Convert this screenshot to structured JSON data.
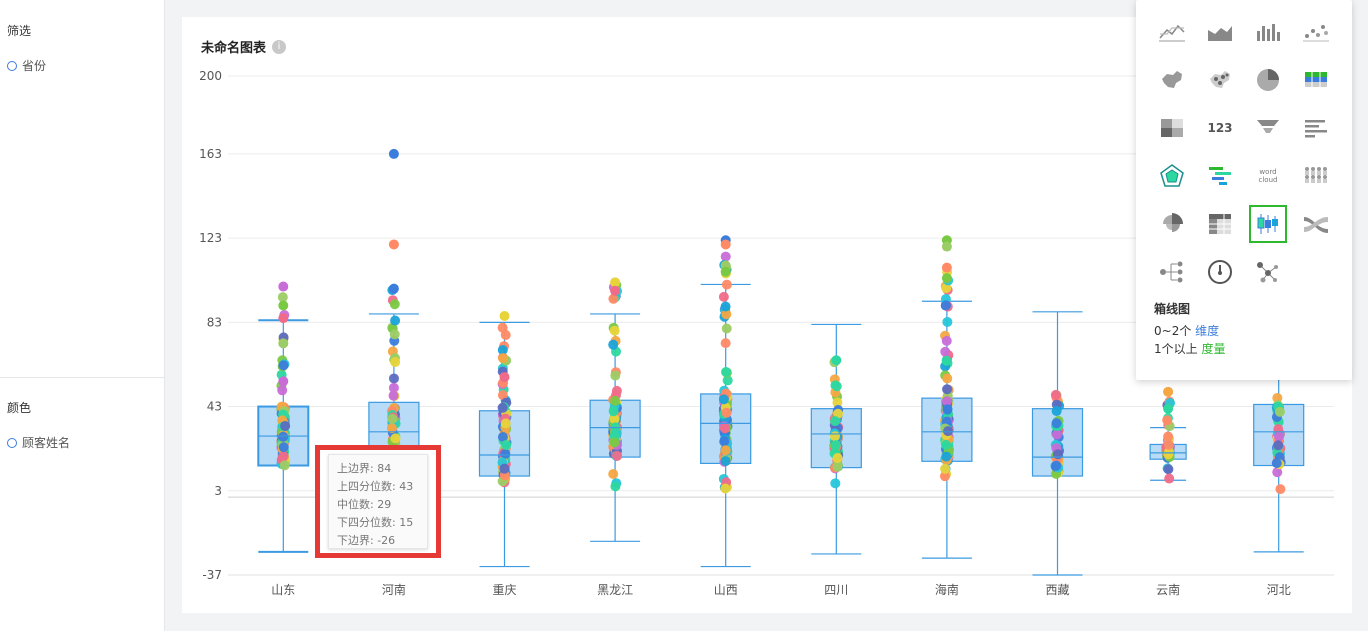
{
  "left_panel": {
    "filter_title": "筛选",
    "filter_field": "省份",
    "color_title": "颜色",
    "color_field": "顾客姓名"
  },
  "chart_title": "未命名图表",
  "tooltip": {
    "lines": [
      "上边界: 84",
      "上四分位数: 43",
      "中位数: 29",
      "下四分位数: 15",
      "下边界: -26"
    ]
  },
  "chart_picker": {
    "icons": [
      "line-chart-icon",
      "area-chart-icon",
      "bar-chart-icon",
      "scatter-chart-icon",
      "china-map-icon",
      "dot-map-icon",
      "pie-chart-icon",
      "flag-table-icon",
      "heatmap-icon",
      "kpi-number-icon",
      "funnel-icon",
      "horizontal-bar-icon",
      "radar-icon",
      "gantt-icon",
      "word-cloud-icon",
      "people-icon",
      "rose-pie-icon",
      "pivot-table-icon",
      "boxplot-icon",
      "sankey-icon",
      "tree-icon",
      "gauge-icon",
      "network-icon"
    ],
    "kpi_text": "123",
    "wordcloud_text": "word cloud",
    "selected": "boxplot-icon",
    "name": "箱线图",
    "dim_prefix": "0~2个 ",
    "dim_word": "维度",
    "measure_prefix": "1个以上 ",
    "measure_word": "度量"
  },
  "chart_data": {
    "type": "boxplot",
    "y_ticks": [
      -37,
      3,
      43,
      83,
      123,
      163,
      200
    ],
    "ylim": [
      -37,
      200
    ],
    "categories": [
      "山东",
      "河南",
      "重庆",
      "黑龙江",
      "山西",
      "四川",
      "海南",
      "西藏",
      "云南",
      "河北"
    ],
    "boxes": [
      {
        "whisker_low": -26,
        "q1": 15,
        "median": 29,
        "q3": 43,
        "whisker_high": 84
      },
      {
        "whisker_low": -26,
        "q1": 15,
        "median": 31,
        "q3": 45,
        "whisker_high": 87
      },
      {
        "whisker_low": -33,
        "q1": 10,
        "median": 20,
        "q3": 41,
        "whisker_high": 83
      },
      {
        "whisker_low": -21,
        "q1": 19,
        "median": 33,
        "q3": 46,
        "whisker_high": 87
      },
      {
        "whisker_low": -33,
        "q1": 16,
        "median": 35,
        "q3": 49,
        "whisker_high": 101
      },
      {
        "whisker_low": -27,
        "q1": 14,
        "median": 30,
        "q3": 42,
        "whisker_high": 82
      },
      {
        "whisker_low": -29,
        "q1": 17,
        "median": 31,
        "q3": 47,
        "whisker_high": 93
      },
      {
        "whisker_low": -37,
        "q1": 10,
        "median": 19,
        "q3": 42,
        "whisker_high": 88
      },
      {
        "whisker_low": 8,
        "q1": 18,
        "median": 21,
        "q3": 25,
        "whisker_high": 33
      },
      {
        "whisker_low": -26,
        "q1": 15,
        "median": 31,
        "q3": 44,
        "whisker_high": 88
      }
    ],
    "outliers": [
      [
        100,
        91,
        85,
        73,
        55
      ],
      [
        163,
        120,
        99
      ],
      [
        86,
        57
      ],
      [
        102,
        98
      ],
      [
        122,
        120,
        110,
        107
      ],
      [
        65
      ],
      [
        122,
        119,
        109,
        104
      ],
      [],
      [
        50,
        42
      ],
      []
    ],
    "point_ranges": [
      [
        3,
        100
      ],
      [
        20,
        99
      ],
      [
        5,
        86
      ],
      [
        5,
        102
      ],
      [
        1,
        122
      ],
      [
        6,
        65
      ],
      [
        3,
        122
      ],
      [
        4,
        50
      ],
      [
        5,
        50
      ],
      [
        2,
        50
      ]
    ]
  }
}
